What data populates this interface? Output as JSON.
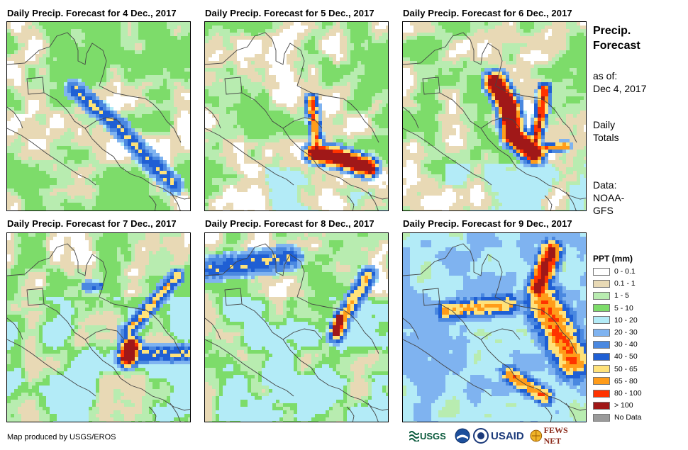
{
  "maps": [
    {
      "title": "Daily Precip. Forecast for 4 Dec., 2017",
      "day": 4
    },
    {
      "title": "Daily Precip. Forecast for 5 Dec., 2017",
      "day": 5
    },
    {
      "title": "Daily Precip. Forecast for 6 Dec., 2017",
      "day": 6
    },
    {
      "title": "Daily Precip. Forecast for 7 Dec., 2017",
      "day": 7
    },
    {
      "title": "Daily Precip. Forecast for 8 Dec., 2017",
      "day": 8
    },
    {
      "title": "Daily Precip. Forecast for 9 Dec., 2017",
      "day": 9
    }
  ],
  "side": {
    "title_line1": "Precip.",
    "title_line2": "Forecast",
    "asof_line1": "as of:",
    "asof_line2": "Dec 4, 2017",
    "totals_line1": "Daily",
    "totals_line2": "Totals",
    "data_line1": "Data:",
    "data_line2": "NOAA-",
    "data_line3": "GFS"
  },
  "legend": {
    "title": "PPT (mm)",
    "items": [
      {
        "label": "0 - 0.1",
        "color": "#ffffff"
      },
      {
        "label": "0.1 - 1",
        "color": "#e8d9b5"
      },
      {
        "label": "1 - 5",
        "color": "#b8ecb0"
      },
      {
        "label": "5 - 10",
        "color": "#7ddc6a"
      },
      {
        "label": "10 - 20",
        "color": "#b3ebf7"
      },
      {
        "label": "20 - 30",
        "color": "#7fb3f0"
      },
      {
        "label": "30 - 40",
        "color": "#4a88e0"
      },
      {
        "label": "40 - 50",
        "color": "#1f5fd4"
      },
      {
        "label": "50 - 65",
        "color": "#ffe27a"
      },
      {
        "label": "65 - 80",
        "color": "#ff9c1a"
      },
      {
        "label": "80 - 100",
        "color": "#ff3300"
      },
      {
        "label": "> 100",
        "color": "#a01818"
      },
      {
        "label": "No Data",
        "color": "#9a9a9a"
      }
    ]
  },
  "footer": {
    "credit": "Map produced by USGS/EROS",
    "logo_usgs": "USGS",
    "logo_usaid": "USAID",
    "logo_fewsnet": "FEWS NET"
  }
}
